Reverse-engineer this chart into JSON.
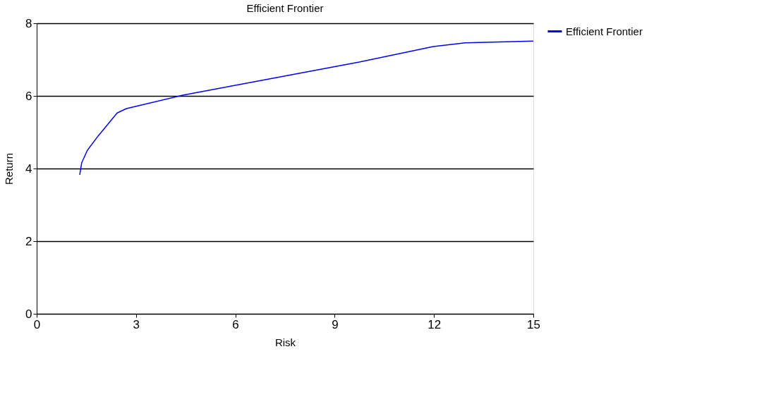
{
  "chart_data": {
    "type": "line",
    "title": "Efficient Frontier",
    "xlabel": "Risk",
    "ylabel": "Return",
    "xlim": [
      0,
      15
    ],
    "xticks": [
      0,
      3,
      6,
      9,
      12,
      15
    ],
    "ylim": [
      0,
      8
    ],
    "yticks": [
      0,
      2,
      4,
      6,
      8
    ],
    "grid": "y",
    "legend": "top right",
    "line_style": "solid",
    "marker": "none",
    "series": [
      {
        "name": "Efficient Frontier",
        "color": "#0000ff",
        "x": [
          1.3,
          1.36,
          1.53,
          1.85,
          2.43,
          2.71,
          4.41,
          9.74,
          11.98,
          12.94,
          15.0
        ],
        "values": [
          3.83,
          4.16,
          4.5,
          4.89,
          5.53,
          5.65,
          6.02,
          6.93,
          7.36,
          7.46,
          7.51
        ]
      }
    ]
  }
}
